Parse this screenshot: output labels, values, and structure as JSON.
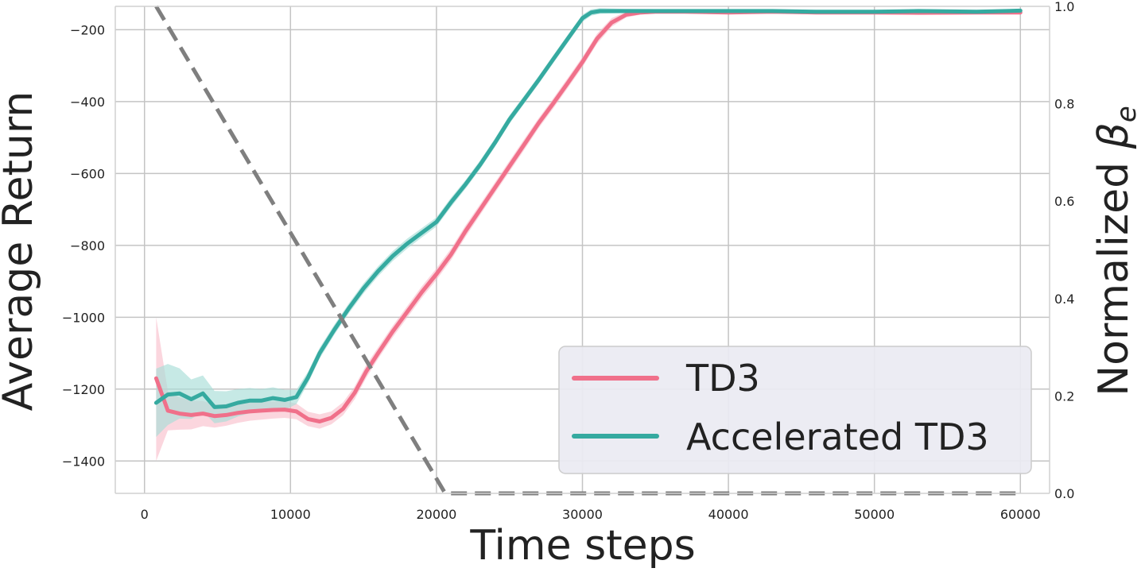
{
  "chart_data": {
    "type": "line",
    "title": "",
    "xlabel": "Time steps",
    "ylabel": "Average Return",
    "y2label": "Normalized βe",
    "xlim": [
      -2000,
      62000
    ],
    "ylim": [
      -1490,
      -135
    ],
    "y2lim": [
      0.0,
      1.0
    ],
    "grid": true,
    "legend_position": "lower-right",
    "x_ticks": [
      0,
      10000,
      20000,
      30000,
      40000,
      50000,
      60000
    ],
    "x_tick_labels": [
      "0",
      "10000",
      "20000",
      "30000",
      "40000",
      "50000",
      "60000"
    ],
    "y_ticks": [
      -200,
      -400,
      -600,
      -800,
      -1000,
      -1200,
      -1400
    ],
    "y_tick_labels": [
      "−200",
      "−400",
      "−600",
      "−800",
      "−1000",
      "−1200",
      "−1400"
    ],
    "y2_ticks": [
      1.0,
      0.8,
      0.6,
      0.4,
      0.2,
      0.0
    ],
    "y2_tick_labels": [
      "1.0",
      "0.8",
      "0.6",
      "0.4",
      "0.2",
      "0.0"
    ],
    "series": [
      {
        "name": "TD3",
        "color": "#f0708a",
        "band_color": "#f7b4c2",
        "x": [
          800,
          1600,
          2400,
          3200,
          4000,
          4800,
          5600,
          6400,
          7200,
          8000,
          8800,
          9600,
          10400,
          11200,
          12000,
          12800,
          13600,
          14400,
          15200,
          16000,
          17000,
          18000,
          19000,
          20000,
          21000,
          22000,
          23000,
          24000,
          25000,
          26000,
          27000,
          28000,
          29000,
          30000,
          31000,
          32000,
          33000,
          34000,
          35000,
          37000,
          40000,
          43000,
          46000,
          50000,
          53000,
          57000,
          60000
        ],
        "y": [
          -1170,
          -1260,
          -1268,
          -1272,
          -1268,
          -1275,
          -1272,
          -1266,
          -1262,
          -1260,
          -1258,
          -1257,
          -1262,
          -1283,
          -1290,
          -1280,
          -1255,
          -1210,
          -1150,
          -1100,
          -1040,
          -985,
          -930,
          -880,
          -825,
          -760,
          -700,
          -640,
          -580,
          -520,
          -460,
          -405,
          -348,
          -290,
          -225,
          -180,
          -158,
          -152,
          -150,
          -150,
          -152,
          -150,
          -152,
          -152,
          -153,
          -152,
          -152
        ],
        "band": [
          60,
          55,
          45,
          40,
          35,
          32,
          30,
          28,
          26,
          25,
          24,
          23,
          22,
          20,
          20,
          18,
          18,
          18,
          18,
          16,
          16,
          16,
          16,
          16,
          16,
          16,
          15,
          15,
          15,
          15,
          14,
          14,
          14,
          14,
          14,
          12,
          8,
          6,
          5,
          5,
          5,
          5,
          5,
          5,
          5,
          5,
          5
        ],
        "band_upper_first": -1000,
        "band_lower_first": -1400
      },
      {
        "name": "Accelerated TD3",
        "color": "#35aaa0",
        "band_color": "#a8ddd7",
        "x": [
          800,
          1600,
          2400,
          3200,
          4000,
          4800,
          5600,
          6400,
          7200,
          8000,
          8800,
          9600,
          10400,
          11200,
          12000,
          13000,
          14000,
          15000,
          16000,
          17000,
          18000,
          19000,
          20000,
          21000,
          22000,
          23000,
          24000,
          25000,
          26000,
          27000,
          28000,
          29000,
          30000,
          30600,
          31200,
          33000,
          36000,
          40000,
          43000,
          46000,
          50000,
          53000,
          57000,
          60000
        ],
        "y": [
          -1238,
          -1215,
          -1212,
          -1228,
          -1212,
          -1250,
          -1248,
          -1238,
          -1232,
          -1232,
          -1225,
          -1230,
          -1222,
          -1168,
          -1100,
          -1035,
          -975,
          -920,
          -872,
          -830,
          -795,
          -765,
          -735,
          -680,
          -630,
          -575,
          -515,
          -450,
          -395,
          -340,
          -282,
          -225,
          -168,
          -152,
          -148,
          -148,
          -148,
          -148,
          -148,
          -150,
          -150,
          -148,
          -150,
          -147
        ],
        "band": [
          95,
          85,
          70,
          55,
          50,
          45,
          42,
          38,
          35,
          32,
          30,
          28,
          20,
          16,
          15,
          14,
          14,
          14,
          14,
          14,
          14,
          13,
          13,
          13,
          12,
          12,
          12,
          12,
          11,
          11,
          11,
          11,
          10,
          9,
          8,
          6,
          5,
          5,
          5,
          5,
          5,
          5,
          5,
          5
        ]
      },
      {
        "name": "",
        "role": "normalized beta_e (right axis)",
        "color": "#7f7f7f",
        "style": "dashed",
        "x": [
          800,
          20600,
          60000
        ],
        "y2": [
          1.0,
          0.0,
          0.0
        ]
      }
    ],
    "legend": [
      {
        "label": "TD3",
        "series": 0
      },
      {
        "label": "Accelerated TD3",
        "series": 1
      }
    ]
  }
}
